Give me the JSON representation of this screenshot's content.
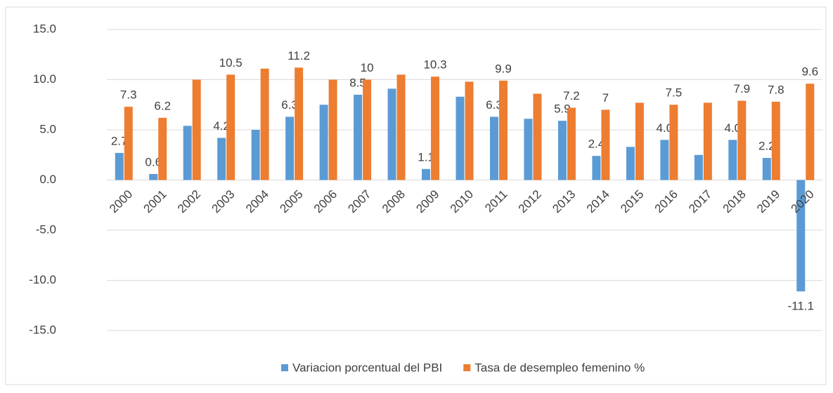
{
  "chart_data": {
    "type": "bar",
    "categories": [
      "2000",
      "2001",
      "2002",
      "2003",
      "2004",
      "2005",
      "2006",
      "2007",
      "2008",
      "2009",
      "2010",
      "2011",
      "2012",
      "2013",
      "2014",
      "2015",
      "2016",
      "2017",
      "2018",
      "2019",
      "2020"
    ],
    "series": [
      {
        "name": "Variacion porcentual del PBI",
        "color": "#5b9bd5",
        "values": [
          2.7,
          0.6,
          5.4,
          4.2,
          5.0,
          6.3,
          7.5,
          8.5,
          9.1,
          1.1,
          8.3,
          6.3,
          6.1,
          5.9,
          2.4,
          3.3,
          4.0,
          2.5,
          4.0,
          2.2,
          -11.1
        ],
        "value_labels": [
          "2.7",
          "0.6",
          null,
          "4.2",
          null,
          "6.3",
          null,
          "8.5",
          null,
          "1.1",
          null,
          "6.3",
          null,
          "5.9",
          "2.4",
          null,
          "4.0",
          null,
          "4.0",
          "2.2",
          "-11.1"
        ]
      },
      {
        "name": "Tasa de desempleo femenino %",
        "color": "#ed7d31",
        "values": [
          7.3,
          6.2,
          10.0,
          10.5,
          11.1,
          11.2,
          10.0,
          10,
          10.5,
          10.3,
          9.8,
          9.9,
          8.6,
          7.2,
          7,
          7.7,
          7.5,
          7.7,
          7.9,
          7.8,
          9.6
        ],
        "value_labels": [
          "7.3",
          "6.2",
          null,
          "10.5",
          null,
          "11.2",
          null,
          "10",
          null,
          "10.3",
          null,
          "9.9",
          null,
          "7.2",
          "7",
          null,
          "7.5",
          null,
          "7.9",
          "7.8",
          "9.6"
        ]
      }
    ],
    "ylim": [
      -15,
      15
    ],
    "yticks": [
      {
        "value": -15,
        "label": "-15.0"
      },
      {
        "value": -10,
        "label": "-10.0"
      },
      {
        "value": -5,
        "label": "-5.0"
      },
      {
        "value": 0,
        "label": "0.0"
      },
      {
        "value": 5,
        "label": "5.0"
      },
      {
        "value": 10,
        "label": "10.0"
      },
      {
        "value": 15,
        "label": "15.0"
      }
    ],
    "grid": true,
    "legend": "bottom"
  }
}
